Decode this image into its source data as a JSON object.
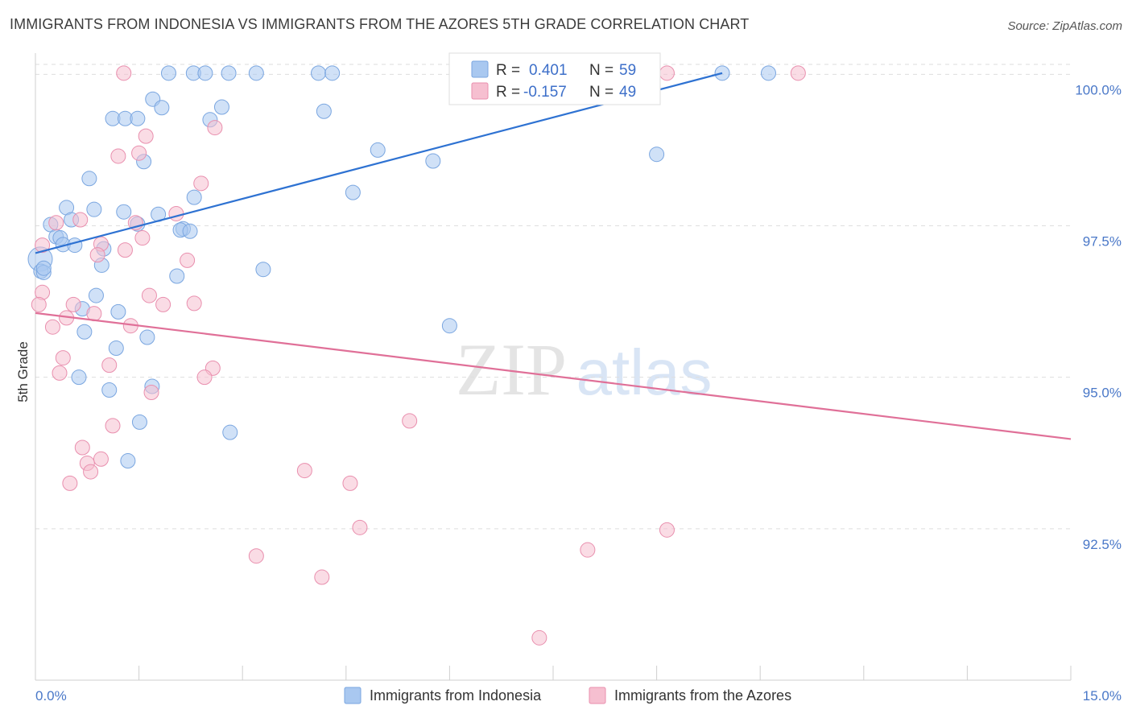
{
  "title": "IMMIGRANTS FROM INDONESIA VS IMMIGRANTS FROM THE AZORES 5TH GRADE CORRELATION CHART",
  "source": "Source: ZipAtlas.com",
  "watermark": {
    "zip": "ZIP",
    "atlas": "atlas"
  },
  "legend": {
    "r_label": "R =",
    "n_label": "N =",
    "entries": [
      {
        "r": "0.401",
        "n": "59",
        "color": "#a9c8f0",
        "stroke": "#7aa6e0"
      },
      {
        "r": "-0.157",
        "n": "49",
        "color": "#f6bfd0",
        "stroke": "#e98fae"
      }
    ]
  },
  "bottom_legend": [
    {
      "label": "Immigrants from Indonesia",
      "color": "#a9c8f0",
      "stroke": "#7aa6e0"
    },
    {
      "label": "Immigrants from the Azores",
      "color": "#f6bfd0",
      "stroke": "#e98fae"
    }
  ],
  "chart_data": {
    "type": "scatter",
    "title": "IMMIGRANTS FROM INDONESIA VS IMMIGRANTS FROM THE AZORES 5TH GRADE CORRELATION CHART",
    "xlabel": "",
    "ylabel": "5th Grade",
    "xlim": [
      0,
      15
    ],
    "ylim": [
      90.0,
      100.35
    ],
    "x_tick_labels": [
      "0.0%",
      "15.0%"
    ],
    "y_ticks": [
      92.5,
      95.0,
      97.5,
      100.0
    ],
    "y_tick_labels": [
      "92.5%",
      "95.0%",
      "97.5%",
      "100.0%"
    ],
    "grid": "horizontal dashed",
    "series": [
      {
        "name": "Immigrants from Indonesia",
        "color": "#a9c8f0",
        "line_color": "#2e72d2",
        "trend": {
          "x": [
            0.0,
            9.95
          ],
          "y": [
            97.05,
            100.02
          ]
        },
        "points": [
          [
            1.93,
            100.02
          ],
          [
            2.29,
            100.02
          ],
          [
            2.46,
            100.02
          ],
          [
            2.8,
            100.02
          ],
          [
            3.2,
            100.02
          ],
          [
            4.1,
            100.02
          ],
          [
            4.3,
            100.02
          ],
          [
            9.95,
            100.02
          ],
          [
            10.62,
            100.02
          ],
          [
            1.7,
            99.59
          ],
          [
            1.83,
            99.45
          ],
          [
            2.7,
            99.46
          ],
          [
            4.18,
            99.39
          ],
          [
            1.12,
            99.27
          ],
          [
            1.3,
            99.27
          ],
          [
            1.48,
            99.27
          ],
          [
            2.53,
            99.25
          ],
          [
            4.96,
            98.75
          ],
          [
            5.76,
            98.57
          ],
          [
            1.57,
            98.56
          ],
          [
            9.0,
            98.68
          ],
          [
            0.78,
            98.28
          ],
          [
            4.6,
            98.05
          ],
          [
            2.3,
            97.97
          ],
          [
            0.45,
            97.8
          ],
          [
            0.85,
            97.77
          ],
          [
            1.28,
            97.73
          ],
          [
            1.78,
            97.69
          ],
          [
            0.52,
            97.6
          ],
          [
            1.48,
            97.53
          ],
          [
            2.14,
            97.45
          ],
          [
            0.22,
            97.52
          ],
          [
            0.3,
            97.32
          ],
          [
            2.1,
            97.43
          ],
          [
            2.24,
            97.41
          ],
          [
            0.36,
            97.3
          ],
          [
            0.4,
            97.19
          ],
          [
            0.57,
            97.18
          ],
          [
            0.99,
            97.12
          ],
          [
            0.07,
            96.95
          ],
          [
            0.08,
            96.75
          ],
          [
            0.12,
            96.73
          ],
          [
            0.96,
            96.85
          ],
          [
            3.3,
            96.78
          ],
          [
            2.05,
            96.67
          ],
          [
            0.88,
            96.35
          ],
          [
            0.68,
            96.13
          ],
          [
            1.2,
            96.08
          ],
          [
            6.0,
            95.85
          ],
          [
            0.71,
            95.75
          ],
          [
            1.62,
            95.66
          ],
          [
            1.17,
            95.48
          ],
          [
            0.63,
            95.0
          ],
          [
            1.69,
            94.85
          ],
          [
            1.07,
            94.79
          ],
          [
            1.51,
            94.26
          ],
          [
            2.82,
            94.09
          ],
          [
            1.34,
            93.62
          ],
          [
            0.12,
            96.8
          ]
        ],
        "point_sizes": {
          "large_x": [
            0.07
          ],
          "large_r": 15
        }
      },
      {
        "name": "Immigrants from the Azores",
        "color": "#f6bfd0",
        "line_color": "#e07098",
        "trend": {
          "x": [
            0.0,
            15.0
          ],
          "y": [
            96.06,
            93.98
          ]
        },
        "points": [
          [
            1.28,
            100.02
          ],
          [
            9.15,
            100.02
          ],
          [
            11.05,
            100.02
          ],
          [
            2.6,
            99.12
          ],
          [
            1.6,
            98.98
          ],
          [
            1.5,
            98.7
          ],
          [
            1.2,
            98.65
          ],
          [
            2.4,
            98.2
          ],
          [
            2.04,
            97.7
          ],
          [
            0.3,
            97.55
          ],
          [
            0.65,
            97.6
          ],
          [
            1.45,
            97.55
          ],
          [
            1.55,
            97.3
          ],
          [
            0.95,
            97.2
          ],
          [
            1.3,
            97.1
          ],
          [
            0.1,
            97.18
          ],
          [
            0.9,
            97.02
          ],
          [
            2.2,
            96.93
          ],
          [
            0.1,
            96.4
          ],
          [
            1.65,
            96.35
          ],
          [
            0.05,
            96.2
          ],
          [
            0.55,
            96.2
          ],
          [
            1.85,
            96.2
          ],
          [
            2.3,
            96.22
          ],
          [
            0.85,
            96.05
          ],
          [
            0.45,
            95.98
          ],
          [
            0.25,
            95.83
          ],
          [
            1.38,
            95.85
          ],
          [
            0.4,
            95.32
          ],
          [
            1.07,
            95.2
          ],
          [
            0.35,
            95.07
          ],
          [
            2.57,
            95.15
          ],
          [
            2.45,
            95.0
          ],
          [
            1.68,
            94.75
          ],
          [
            5.42,
            94.28
          ],
          [
            1.12,
            94.2
          ],
          [
            0.68,
            93.84
          ],
          [
            0.95,
            93.65
          ],
          [
            0.75,
            93.58
          ],
          [
            0.8,
            93.44
          ],
          [
            3.9,
            93.46
          ],
          [
            0.5,
            93.25
          ],
          [
            4.56,
            93.25
          ],
          [
            4.7,
            92.52
          ],
          [
            9.15,
            92.48
          ],
          [
            8.0,
            92.15
          ],
          [
            3.2,
            92.05
          ],
          [
            4.15,
            91.7
          ],
          [
            7.3,
            90.7
          ]
        ]
      }
    ]
  }
}
